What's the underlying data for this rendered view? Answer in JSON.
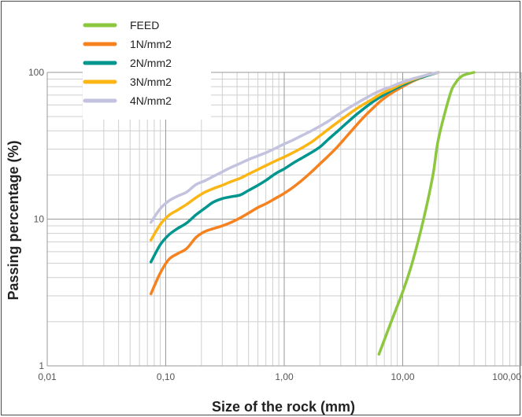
{
  "chart_data": {
    "type": "line",
    "xlabel": "Size of the rock (mm)",
    "ylabel": "Passing percentage (%)",
    "x_scale": "log",
    "y_scale": "log",
    "xlim": [
      0.01,
      100
    ],
    "ylim": [
      1,
      100
    ],
    "x_ticks": [
      {
        "value": 0.01,
        "label": "0,01"
      },
      {
        "value": 0.1,
        "label": "0,10"
      },
      {
        "value": 1,
        "label": "1,00"
      },
      {
        "value": 10,
        "label": "10,00"
      },
      {
        "value": 100,
        "label": "100,00"
      }
    ],
    "y_ticks": [
      {
        "value": 1,
        "label": "1"
      },
      {
        "value": 10,
        "label": "10"
      },
      {
        "value": 100,
        "label": "100"
      }
    ],
    "grid": true,
    "legend_position": "top-left",
    "series": [
      {
        "name": "FEED",
        "color": "#8dc63f",
        "x": [
          6.3,
          8,
          10,
          12,
          15,
          18,
          20,
          25,
          28,
          32,
          40
        ],
        "y": [
          1.2,
          2.0,
          3.2,
          5.0,
          10,
          20,
          35,
          70,
          85,
          95,
          100
        ]
      },
      {
        "name": "1N/mm2",
        "color": "#f5821f",
        "x": [
          0.075,
          0.09,
          0.106,
          0.125,
          0.15,
          0.18,
          0.212,
          0.25,
          0.3,
          0.355,
          0.425,
          0.5,
          0.6,
          0.71,
          0.85,
          1.0,
          1.18,
          1.4,
          1.7,
          2.0,
          2.36,
          2.8,
          3.35,
          4.0,
          4.75,
          5.6,
          6.7,
          8.0,
          10.0,
          12.5,
          16.0,
          20.0
        ],
        "y": [
          3.1,
          4.3,
          5.3,
          5.8,
          6.3,
          7.5,
          8.2,
          8.6,
          9.0,
          9.5,
          10.2,
          11.0,
          12.0,
          12.8,
          13.9,
          15.0,
          16.4,
          18.3,
          21.0,
          23.8,
          27.0,
          31.0,
          36.5,
          43.0,
          50.0,
          57.0,
          65.0,
          72.0,
          80.0,
          88.0,
          95.0,
          100
        ]
      },
      {
        "name": "2N/mm2",
        "color": "#00968f",
        "x": [
          0.075,
          0.09,
          0.106,
          0.125,
          0.15,
          0.18,
          0.212,
          0.25,
          0.3,
          0.355,
          0.425,
          0.5,
          0.6,
          0.71,
          0.85,
          1.0,
          1.18,
          1.4,
          1.7,
          2.0,
          2.36,
          2.8,
          3.35,
          4.0,
          4.75,
          5.6,
          6.7,
          8.0,
          10.0,
          12.5,
          16.0,
          20.0
        ],
        "y": [
          5.1,
          6.7,
          7.8,
          8.6,
          9.4,
          10.7,
          11.8,
          13.0,
          13.8,
          14.2,
          14.6,
          15.7,
          17.0,
          18.5,
          20.5,
          22.0,
          24.0,
          26.0,
          28.5,
          31.0,
          35.0,
          39.5,
          45.0,
          51.0,
          57.0,
          63.0,
          69.0,
          75.0,
          82.0,
          89.0,
          95.0,
          100
        ]
      },
      {
        "name": "3N/mm2",
        "color": "#fbb616",
        "x": [
          0.075,
          0.09,
          0.106,
          0.125,
          0.15,
          0.18,
          0.212,
          0.25,
          0.3,
          0.355,
          0.425,
          0.5,
          0.6,
          0.71,
          0.85,
          1.0,
          1.18,
          1.4,
          1.7,
          2.0,
          2.36,
          2.8,
          3.35,
          4.0,
          4.75,
          5.6,
          6.7,
          8.0,
          10.0,
          12.5,
          16.0,
          20.0
        ],
        "y": [
          7.2,
          9.2,
          10.6,
          11.5,
          12.6,
          14.0,
          15.2,
          16.1,
          17.0,
          18.0,
          19.0,
          20.3,
          21.8,
          23.3,
          25.0,
          26.5,
          28.3,
          30.5,
          33.5,
          37.0,
          41.0,
          45.5,
          50.5,
          56.0,
          61.0,
          66.0,
          72.0,
          77.0,
          84.0,
          90.0,
          96.0,
          100
        ]
      },
      {
        "name": "4N/mm2",
        "color": "#c3c3df",
        "x": [
          0.075,
          0.09,
          0.106,
          0.125,
          0.15,
          0.18,
          0.212,
          0.25,
          0.3,
          0.355,
          0.425,
          0.5,
          0.6,
          0.71,
          0.85,
          1.0,
          1.18,
          1.4,
          1.7,
          2.0,
          2.36,
          2.8,
          3.35,
          4.0,
          4.75,
          5.6,
          6.7,
          8.0,
          10.0,
          12.5,
          16.0,
          20.0
        ],
        "y": [
          9.5,
          11.8,
          13.3,
          14.3,
          15.3,
          17.2,
          18.2,
          19.5,
          21.0,
          22.5,
          24.0,
          25.5,
          27.0,
          28.5,
          30.5,
          32.5,
          34.5,
          37.0,
          40.0,
          43.0,
          46.5,
          51.0,
          56.0,
          61.0,
          66.0,
          71.0,
          76.0,
          80.0,
          86.0,
          91.0,
          96.0,
          100
        ]
      }
    ]
  }
}
